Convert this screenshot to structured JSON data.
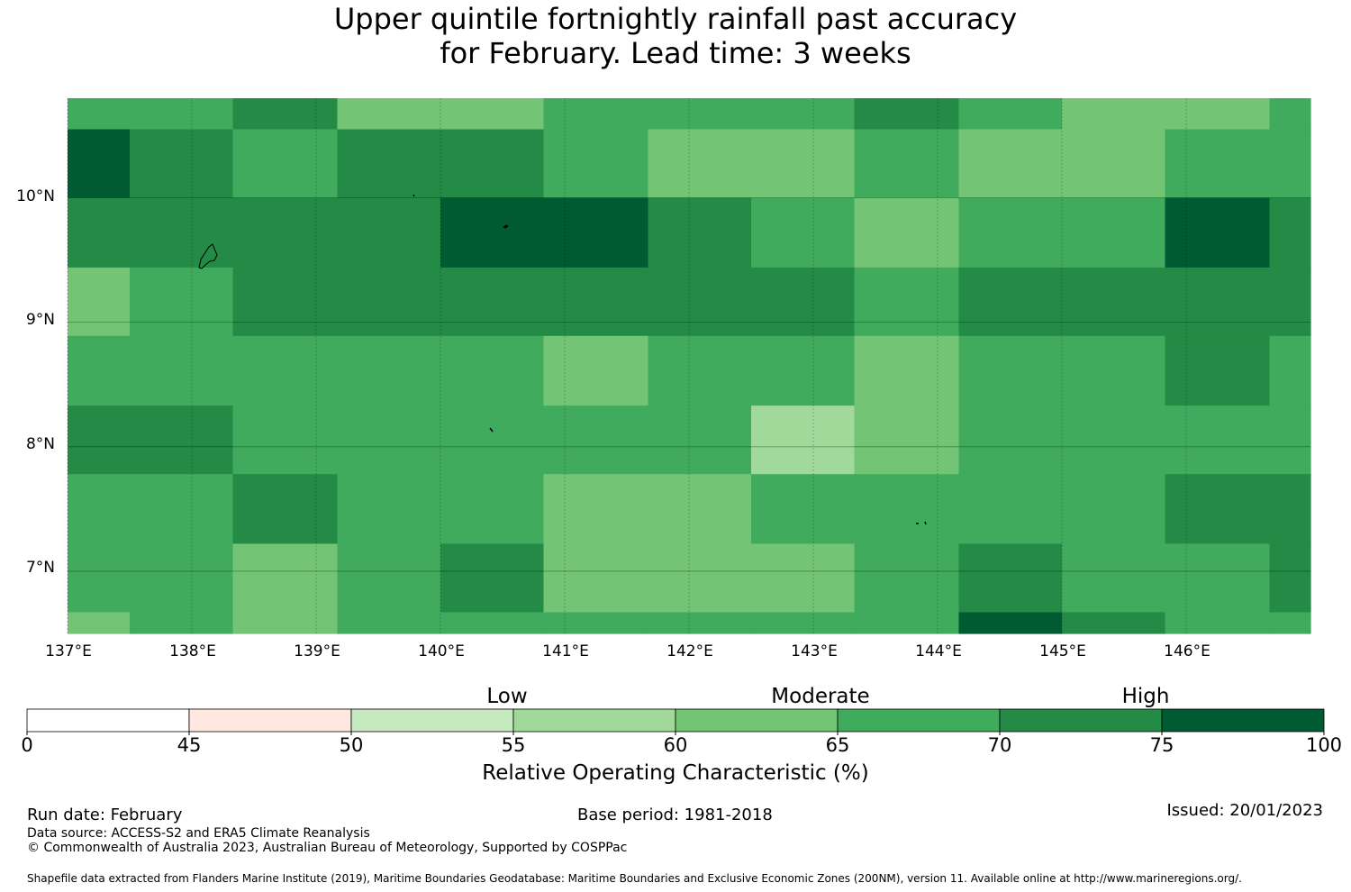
{
  "title": {
    "line1": "Upper quintile fortnightly rainfall past accuracy",
    "line2": "for February. Lead time: 3 weeks"
  },
  "map": {
    "lon_range": [
      137,
      147
    ],
    "lat_range": [
      6.5,
      10.8
    ],
    "lon_ticks": [
      137,
      138,
      139,
      140,
      141,
      142,
      143,
      144,
      145,
      146
    ],
    "lat_ticks": [
      7,
      8,
      9,
      10
    ],
    "lon_tick_labels": [
      "137°E",
      "138°E",
      "139°E",
      "140°E",
      "141°E",
      "142°E",
      "143°E",
      "144°E",
      "145°E",
      "146°E"
    ],
    "lat_tick_labels": [
      "7°N",
      "8°N",
      "9°N",
      "10°N"
    ],
    "lon_edges": [
      137,
      137.5,
      138.33,
      139.17,
      140,
      140.83,
      141.67,
      142.5,
      143.33,
      144.17,
      145,
      145.83,
      146.67,
      147
    ],
    "lat_edges": [
      10.8,
      10.55,
      10,
      9.44,
      8.89,
      8.33,
      7.78,
      7.22,
      6.67,
      6.5
    ],
    "grid_class": [
      [
        5,
        5,
        6,
        4,
        4,
        5,
        5,
        5,
        6,
        5,
        4,
        4,
        5
      ],
      [
        7,
        6,
        5,
        6,
        6,
        5,
        4,
        4,
        5,
        4,
        4,
        5,
        5
      ],
      [
        6,
        6,
        6,
        6,
        7,
        7,
        6,
        5,
        4,
        5,
        5,
        7,
        6
      ],
      [
        4,
        5,
        6,
        6,
        6,
        6,
        6,
        6,
        5,
        6,
        6,
        6,
        6
      ],
      [
        5,
        5,
        5,
        5,
        5,
        4,
        5,
        5,
        4,
        5,
        5,
        6,
        5
      ],
      [
        6,
        6,
        5,
        5,
        5,
        5,
        5,
        3,
        4,
        5,
        5,
        5,
        5
      ],
      [
        5,
        5,
        6,
        5,
        5,
        4,
        4,
        5,
        5,
        5,
        5,
        6,
        6
      ],
      [
        5,
        5,
        4,
        5,
        6,
        4,
        4,
        4,
        5,
        6,
        5,
        5,
        6
      ],
      [
        4,
        5,
        4,
        5,
        5,
        5,
        5,
        5,
        5,
        7,
        6,
        5,
        5
      ]
    ]
  },
  "colorbar": {
    "boundaries": [
      0,
      45,
      50,
      55,
      60,
      65,
      70,
      75,
      100
    ],
    "tick_labels": [
      "0",
      "45",
      "50",
      "55",
      "60",
      "65",
      "70",
      "75",
      "100"
    ],
    "colors": [
      "#ffffff",
      "#fee8e0",
      "#c7e9c0",
      "#a1d99b",
      "#74c476",
      "#41ab5d",
      "#238b45",
      "#005a32"
    ],
    "category_labels": [
      "Low",
      "Moderate",
      "High"
    ],
    "title": "Relative Operating Characteristic (%)"
  },
  "footer": {
    "run_date": "Run date: February",
    "base_period": "Base period: 1981-2018",
    "issued": "Issued: 20/01/2023",
    "data_source": "Data source: ACCESS-S2 and ERA5 Climate Reanalysis",
    "copyright": "© Commonwealth of Australia 2023, Australian Bureau of Meteorology, Supported by COSPPac",
    "shapefile": "Shapefile data extracted from Flanders Marine Institute (2019), Maritime Boundaries Geodatabase: Maritime Boundaries and Exclusive Economic Zones (200NM), version 11. Available online at http://www.marineregions.org/."
  }
}
